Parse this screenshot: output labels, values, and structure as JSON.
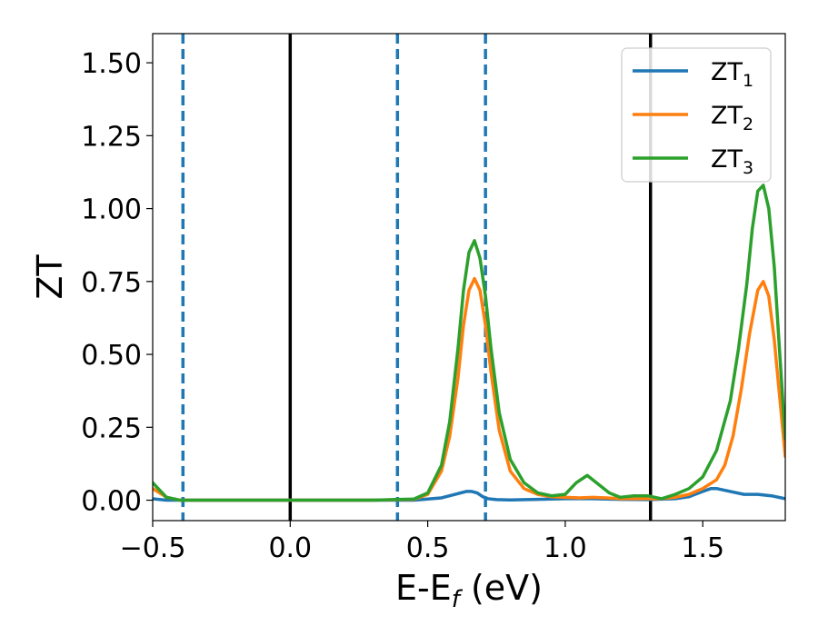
{
  "chart_data": {
    "type": "line",
    "xlabel": "E-E",
    "xlabel_sub": "f",
    "xlabel_unit": " (eV)",
    "ylabel": "ZT",
    "xlim": [
      -0.5,
      1.8
    ],
    "ylim": [
      -0.07,
      1.6
    ],
    "xticks": [
      -0.5,
      0.0,
      0.5,
      1.0,
      1.5
    ],
    "xtick_labels": [
      "−0.5",
      "0.0",
      "0.5",
      "1.0",
      "1.5"
    ],
    "yticks": [
      0.0,
      0.25,
      0.5,
      0.75,
      1.0,
      1.25,
      1.5
    ],
    "ytick_labels": [
      "0.00",
      "0.25",
      "0.50",
      "0.75",
      "1.00",
      "1.25",
      "1.50"
    ],
    "grid": false,
    "legend_position": "top-right",
    "series": [
      {
        "name": "ZT",
        "name_sub": "1",
        "color": "#1f77b4",
        "x": [
          -0.5,
          -0.45,
          -0.4,
          -0.3,
          0.0,
          0.3,
          0.45,
          0.55,
          0.6,
          0.64,
          0.66,
          0.68,
          0.7,
          0.72,
          0.75,
          0.8,
          0.9,
          1.0,
          1.1,
          1.2,
          1.3,
          1.4,
          1.45,
          1.5,
          1.53,
          1.55,
          1.6,
          1.65,
          1.7,
          1.75,
          1.8
        ],
        "values": [
          0.005,
          0.0,
          0.0,
          0.0,
          0.0,
          0.0,
          0.0,
          0.008,
          0.02,
          0.03,
          0.03,
          0.025,
          0.012,
          0.005,
          0.002,
          0.001,
          0.003,
          0.005,
          0.005,
          0.003,
          0.002,
          0.005,
          0.012,
          0.03,
          0.04,
          0.04,
          0.03,
          0.02,
          0.02,
          0.015,
          0.005
        ]
      },
      {
        "name": "ZT",
        "name_sub": "2",
        "color": "#ff7f0e",
        "x": [
          -0.5,
          -0.45,
          -0.4,
          -0.3,
          0.0,
          0.3,
          0.45,
          0.5,
          0.55,
          0.58,
          0.61,
          0.63,
          0.65,
          0.67,
          0.69,
          0.71,
          0.73,
          0.76,
          0.8,
          0.85,
          0.9,
          0.95,
          1.0,
          1.05,
          1.1,
          1.15,
          1.2,
          1.25,
          1.3,
          1.35,
          1.4,
          1.45,
          1.5,
          1.55,
          1.58,
          1.61,
          1.64,
          1.67,
          1.7,
          1.72,
          1.74,
          1.76,
          1.78,
          1.8
        ],
        "values": [
          0.04,
          0.01,
          0.0,
          0.0,
          0.0,
          0.0,
          0.003,
          0.02,
          0.1,
          0.22,
          0.42,
          0.6,
          0.72,
          0.76,
          0.72,
          0.6,
          0.44,
          0.24,
          0.1,
          0.04,
          0.02,
          0.012,
          0.01,
          0.008,
          0.01,
          0.008,
          0.005,
          0.005,
          0.005,
          0.005,
          0.01,
          0.02,
          0.04,
          0.07,
          0.12,
          0.22,
          0.38,
          0.57,
          0.72,
          0.75,
          0.7,
          0.55,
          0.35,
          0.15
        ]
      },
      {
        "name": "ZT",
        "name_sub": "3",
        "color": "#2ca02c",
        "x": [
          -0.5,
          -0.45,
          -0.4,
          -0.3,
          0.0,
          0.3,
          0.45,
          0.5,
          0.55,
          0.58,
          0.61,
          0.63,
          0.65,
          0.67,
          0.69,
          0.71,
          0.73,
          0.76,
          0.8,
          0.85,
          0.9,
          0.95,
          1.0,
          1.04,
          1.08,
          1.12,
          1.16,
          1.2,
          1.25,
          1.3,
          1.35,
          1.4,
          1.45,
          1.5,
          1.55,
          1.6,
          1.63,
          1.66,
          1.68,
          1.7,
          1.72,
          1.74,
          1.76,
          1.78,
          1.8
        ],
        "values": [
          0.06,
          0.01,
          0.0,
          0.0,
          0.0,
          0.0,
          0.004,
          0.025,
          0.12,
          0.27,
          0.52,
          0.72,
          0.85,
          0.89,
          0.83,
          0.7,
          0.52,
          0.3,
          0.14,
          0.06,
          0.025,
          0.015,
          0.02,
          0.06,
          0.085,
          0.055,
          0.025,
          0.01,
          0.015,
          0.015,
          0.005,
          0.02,
          0.04,
          0.08,
          0.17,
          0.34,
          0.52,
          0.74,
          0.93,
          1.06,
          1.08,
          1.0,
          0.8,
          0.5,
          0.21
        ]
      }
    ],
    "vertical_lines": [
      {
        "x": -0.39,
        "style": "dashed",
        "color": "#1f77b4"
      },
      {
        "x": 0.0,
        "style": "solid",
        "color": "#000000"
      },
      {
        "x": 0.39,
        "style": "dashed",
        "color": "#1f77b4"
      },
      {
        "x": 0.71,
        "style": "dashed",
        "color": "#1f77b4"
      },
      {
        "x": 1.31,
        "style": "solid",
        "color": "#000000"
      }
    ]
  }
}
